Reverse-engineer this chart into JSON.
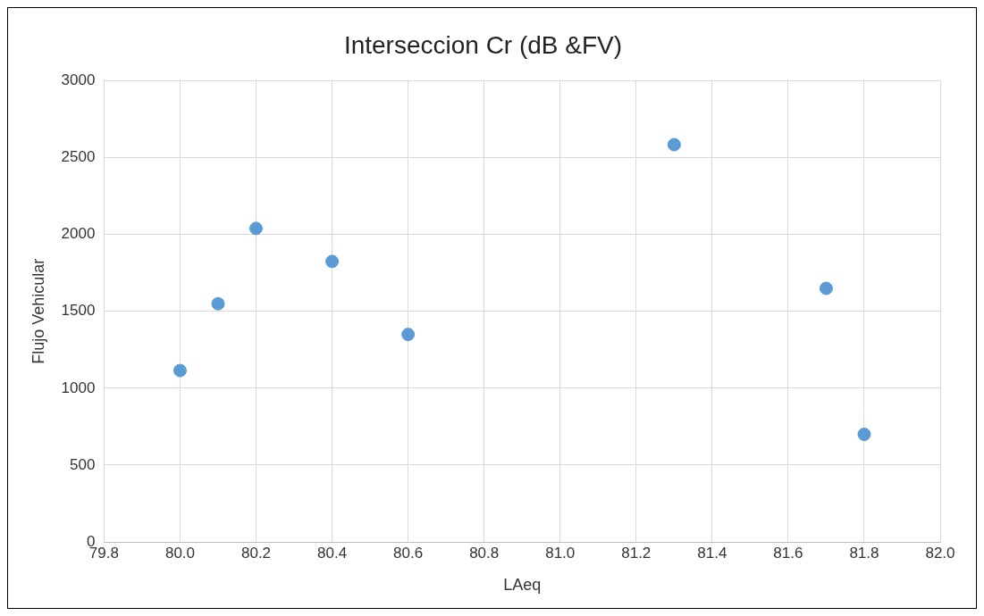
{
  "chart_data": {
    "type": "scatter",
    "title": "Interseccion Cr (dB &FV)",
    "xlabel": "LAeq",
    "ylabel": "Flujo Vehicular",
    "x": [
      80.0,
      80.1,
      80.2,
      80.4,
      80.6,
      81.3,
      81.7,
      81.8
    ],
    "series": [
      {
        "color": "#5b9bd5",
        "values": [
          1115,
          1550,
          2040,
          1825,
          1350,
          2585,
          1650,
          700
        ]
      }
    ],
    "xlim": [
      79.8,
      82.0
    ],
    "xticks": [
      79.8,
      {
        "value": 80.0,
        "label": "80.0"
      },
      80.2,
      80.4,
      80.6,
      80.8,
      {
        "value": 81.0,
        "label": "81.0"
      },
      81.2,
      81.4,
      81.6,
      81.8,
      {
        "value": 82.0,
        "label": "82.0"
      }
    ],
    "ylim": [
      0,
      3000
    ],
    "yticks": [
      0,
      500,
      1000,
      1500,
      2000,
      2500,
      3000
    ],
    "grid": true,
    "legend": false,
    "marker": "circle"
  }
}
